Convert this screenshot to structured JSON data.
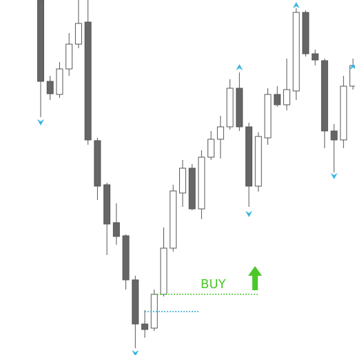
{
  "chart_data": {
    "type": "candlestick",
    "ylim": [
      0,
      515
    ],
    "up_color": "#ffffff",
    "down_color": "#666666",
    "wick_color": "#555555",
    "signal_color": "#3ab7e0",
    "open": [
      515,
      397,
      378,
      415,
      451,
      483,
      311,
      247,
      192,
      173,
      109,
      45,
      39,
      88,
      155,
      235,
      271,
      212,
      287,
      313,
      331,
      387,
      331,
      245,
      315,
      378,
      363,
      383,
      497,
      437,
      427,
      325,
      312,
      390
    ],
    "high": [
      520,
      405,
      425,
      467,
      520,
      520,
      315,
      250,
      220,
      175,
      115,
      65,
      95,
      185,
      247,
      283,
      277,
      297,
      325,
      347,
      400,
      410,
      337,
      323,
      387,
      390,
      430,
      503,
      500,
      443,
      430,
      335,
      405,
      430
    ],
    "low": [
      345,
      370,
      373,
      405,
      445,
      305,
      225,
      145,
      160,
      95,
      10,
      25,
      35,
      85,
      150,
      215,
      210,
      197,
      283,
      285,
      327,
      325,
      215,
      237,
      305,
      360,
      355,
      370,
      433,
      420,
      300,
      265,
      300,
      385
    ],
    "close": [
      397,
      379,
      415,
      451,
      481,
      312,
      245,
      190,
      172,
      109,
      45,
      37,
      88,
      155,
      238,
      271,
      212,
      287,
      313,
      331,
      387,
      331,
      245,
      317,
      378,
      363,
      385,
      497,
      437,
      428,
      325,
      312,
      390,
      420
    ],
    "up_signals": [
      {
        "index": 21,
        "value": 417
      },
      {
        "index": 27,
        "value": 507
      },
      {
        "index": 33,
        "value": 418
      }
    ],
    "down_signals": [
      {
        "index": 0,
        "value": 338
      },
      {
        "index": 10,
        "value": 3
      },
      {
        "index": 22,
        "value": 205
      },
      {
        "index": 31,
        "value": 260
      }
    ],
    "buy_level": {
      "value": 88,
      "color": "#4cc72a"
    },
    "stop_level": {
      "value": 63,
      "color": "#2aa6d8"
    },
    "buy_label": "BUY"
  }
}
